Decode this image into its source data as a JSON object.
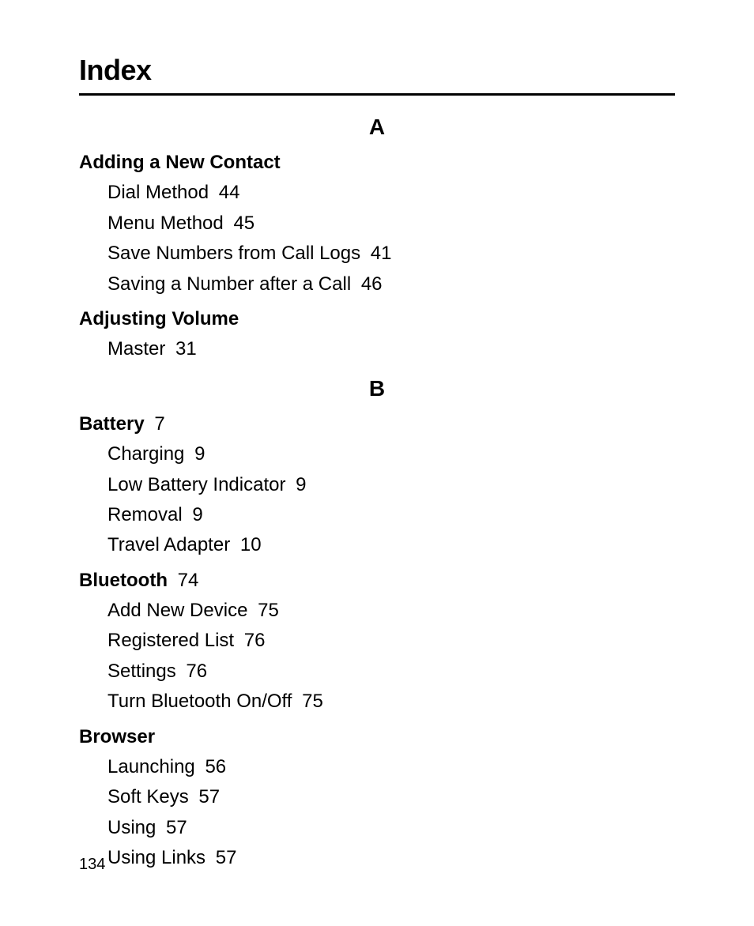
{
  "title": "Index",
  "page_number": "134",
  "sections": [
    {
      "letter": "A",
      "entries": [
        {
          "label": "Adding a New Contact",
          "page": "",
          "subs": [
            {
              "label": "Dial Method",
              "page": "44"
            },
            {
              "label": "Menu Method",
              "page": "45"
            },
            {
              "label": "Save Numbers from Call Logs",
              "page": "41"
            },
            {
              "label": "Saving a Number after a Call",
              "page": "46"
            }
          ]
        },
        {
          "label": "Adjusting Volume",
          "page": "",
          "subs": [
            {
              "label": "Master",
              "page": "31"
            }
          ]
        }
      ]
    },
    {
      "letter": "B",
      "entries": [
        {
          "label": "Battery",
          "page": "7",
          "subs": [
            {
              "label": "Charging",
              "page": "9"
            },
            {
              "label": "Low Battery Indicator",
              "page": "9"
            },
            {
              "label": "Removal",
              "page": "9"
            },
            {
              "label": "Travel Adapter",
              "page": "10"
            }
          ]
        },
        {
          "label": "Bluetooth",
          "page": "74",
          "subs": [
            {
              "label": "Add New Device",
              "page": "75"
            },
            {
              "label": "Registered List",
              "page": "76"
            },
            {
              "label": "Settings",
              "page": "76"
            },
            {
              "label": "Turn Bluetooth On/Off",
              "page": "75"
            }
          ]
        },
        {
          "label": "Browser",
          "page": "",
          "subs": [
            {
              "label": "Launching",
              "page": "56"
            },
            {
              "label": "Soft Keys",
              "page": "57"
            },
            {
              "label": "Using",
              "page": "57"
            },
            {
              "label": "Using Links",
              "page": "57"
            }
          ]
        }
      ]
    }
  ]
}
